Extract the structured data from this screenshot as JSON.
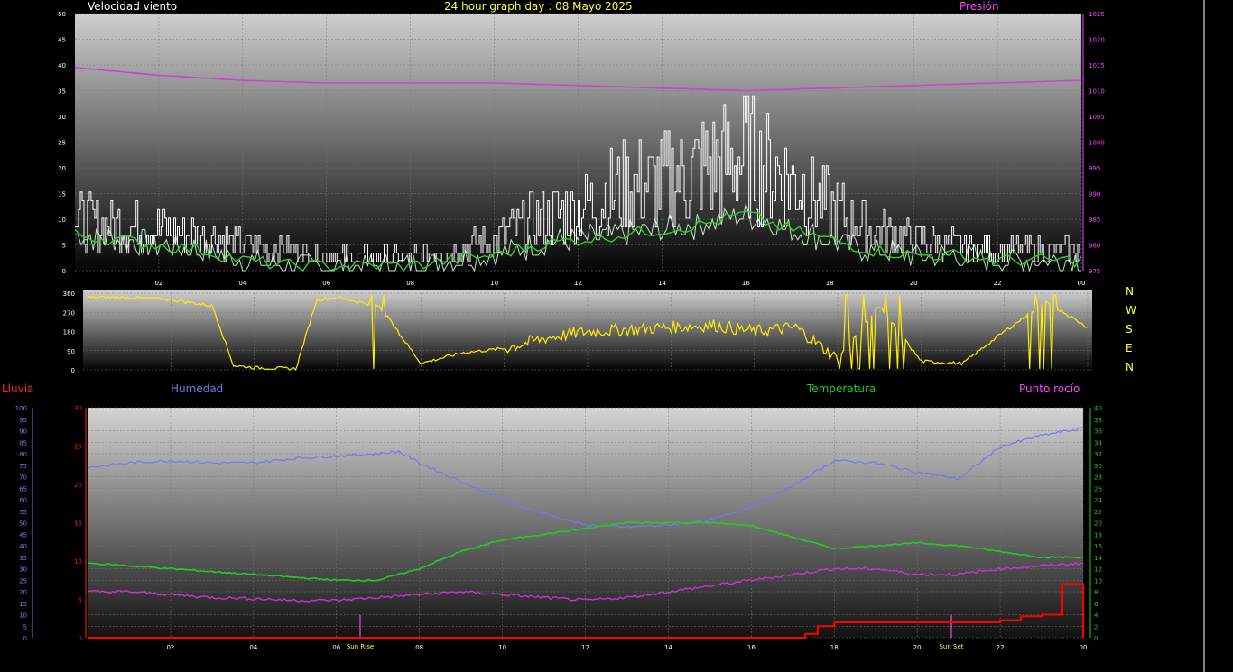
{
  "header": {
    "wind_label": "Velocidad viento",
    "title": "24 hour graph day : 08 Mayo 2025",
    "pressure_label": "Presión"
  },
  "direction_labels": [
    "N",
    "W",
    "S",
    "E",
    "N"
  ],
  "lower_labels": {
    "rain": "Lluvia",
    "humidity": "Humedad",
    "temperature": "Temperatura",
    "dewpoint": "Punto rocío"
  },
  "markers": {
    "sunrise": "Sun Rise",
    "sunset": "Sun Set"
  },
  "colors": {
    "wind": "#ffffff",
    "wind_avg": "#33cc33",
    "gust_fill": "#ccffcc",
    "pressure": "#cc44cc",
    "direction": "#ffee00",
    "humidity": "#7777ee",
    "temperature": "#22cc22",
    "dewpoint": "#cc33cc",
    "rain": "#ff0000",
    "label_white": "#ffffff",
    "label_yellow": "#ffff44",
    "label_magenta": "#ff44ff"
  },
  "chart_data": [
    {
      "type": "line",
      "x_ticks": [
        "02",
        "04",
        "06",
        "08",
        "10",
        "12",
        "14",
        "16",
        "18",
        "20",
        "22",
        "00"
      ],
      "y_left": {
        "min": 0,
        "max": 50,
        "ticks": [
          0,
          5,
          10,
          15,
          20,
          25,
          30,
          35,
          40,
          45,
          50
        ]
      },
      "y_right": {
        "min": 975,
        "max": 1025,
        "ticks": [
          975,
          980,
          985,
          990,
          995,
          1000,
          1005,
          1010,
          1015,
          1020,
          1025
        ]
      },
      "grid": true,
      "series": [
        {
          "key": "wind_gust",
          "x": [
            0,
            1,
            2,
            3,
            4,
            5,
            6,
            7,
            8,
            9,
            10,
            11,
            12,
            13,
            14,
            15,
            16,
            17,
            18,
            19,
            20,
            21,
            22,
            23,
            24
          ],
          "values": [
            10,
            9,
            8,
            7,
            5,
            4,
            3,
            3,
            3,
            4,
            6,
            10,
            12,
            16,
            17,
            20,
            22,
            18,
            12,
            8,
            6,
            5,
            4,
            4,
            4
          ]
        },
        {
          "key": "wind_avg",
          "x": [
            0,
            1,
            2,
            3,
            4,
            5,
            6,
            7,
            8,
            9,
            10,
            11,
            12,
            13,
            14,
            15,
            16,
            17,
            18,
            19,
            20,
            21,
            22,
            23,
            24
          ],
          "values": [
            7,
            6,
            5,
            4,
            2,
            1,
            1,
            1,
            1,
            2,
            3,
            5,
            6,
            7,
            8,
            9,
            11,
            8,
            6,
            4,
            3,
            3,
            2,
            2,
            2
          ]
        },
        {
          "key": "pressure",
          "x": [
            0,
            2,
            4,
            6,
            8,
            10,
            12,
            14,
            16,
            18,
            20,
            22,
            24
          ],
          "values": [
            1014.5,
            1013,
            1012,
            1011.5,
            1011.5,
            1011.5,
            1011,
            1010.5,
            1010,
            1010.5,
            1011,
            1011.5,
            1012
          ]
        }
      ]
    },
    {
      "type": "line",
      "x_ticks": [],
      "y": {
        "min": 0,
        "max": 360,
        "ticks": [
          0,
          90,
          180,
          270,
          360
        ]
      },
      "grid": true,
      "series": [
        {
          "key": "wind_direction",
          "x": [
            0,
            1,
            2,
            3,
            3.5,
            4,
            5,
            5.5,
            6,
            7,
            8,
            9,
            10,
            11,
            12,
            13,
            14,
            15,
            16,
            17,
            18,
            19,
            20,
            21,
            22,
            23,
            24
          ],
          "values": [
            340,
            340,
            330,
            300,
            20,
            10,
            5,
            330,
            340,
            300,
            30,
            80,
            100,
            150,
            180,
            190,
            200,
            210,
            180,
            200,
            50,
            300,
            40,
            30,
            180,
            320,
            200
          ]
        }
      ]
    },
    {
      "type": "line",
      "x_ticks": [
        "02",
        "04",
        "06",
        "08",
        "10",
        "12",
        "14",
        "16",
        "18",
        "20",
        "22",
        "00"
      ],
      "y_left_rain": {
        "min": 0,
        "max": 30,
        "ticks": [
          0,
          5,
          10,
          15,
          20,
          25,
          30
        ]
      },
      "y_left_humidity": {
        "min": 0,
        "max": 100,
        "ticks": [
          0,
          5,
          10,
          15,
          20,
          25,
          30,
          35,
          40,
          45,
          50,
          55,
          60,
          65,
          70,
          75,
          80,
          85,
          90,
          95,
          100
        ]
      },
      "y_right": {
        "min": 0,
        "max": 40,
        "ticks": [
          0,
          2,
          4,
          6,
          8,
          10,
          12,
          14,
          16,
          18,
          20,
          22,
          24,
          26,
          28,
          30,
          32,
          34,
          36,
          38,
          40
        ]
      },
      "grid": true,
      "series": [
        {
          "key": "humidity",
          "x": [
            0,
            1,
            2,
            3,
            4,
            5,
            6,
            7,
            7.5,
            8,
            9,
            10,
            11,
            12,
            13,
            14,
            15,
            16,
            17,
            18,
            19,
            20,
            21,
            22,
            23,
            24
          ],
          "values": [
            74,
            76,
            77,
            76,
            76,
            78,
            79,
            80,
            81,
            76,
            68,
            60,
            54,
            49,
            48,
            49,
            51,
            57,
            66,
            77,
            76,
            72,
            69,
            83,
            88,
            91
          ]
        },
        {
          "key": "temperature",
          "x": [
            0,
            1,
            2,
            3,
            4,
            5,
            6,
            7,
            8,
            9,
            10,
            11,
            12,
            13,
            14,
            15,
            16,
            17,
            18,
            19,
            20,
            21,
            22,
            23,
            24
          ],
          "values": [
            13,
            12.5,
            12,
            11.5,
            11,
            10.5,
            10,
            10,
            12,
            15,
            17,
            18,
            19,
            20,
            20,
            20,
            19.5,
            17.5,
            15.5,
            16,
            16.5,
            16,
            15,
            14,
            14
          ]
        },
        {
          "key": "dewpoint",
          "x": [
            0,
            1,
            2,
            3,
            4,
            5,
            6,
            7,
            8,
            9,
            10,
            11,
            12,
            13,
            14,
            15,
            16,
            17,
            18,
            19,
            20,
            21,
            22,
            23,
            24
          ],
          "values": [
            8,
            8,
            7.5,
            7,
            6.8,
            6.5,
            6.5,
            7,
            7.5,
            8,
            7.5,
            7,
            6.5,
            7,
            8,
            9,
            10,
            11,
            12,
            12,
            11,
            11,
            12,
            12.5,
            13
          ]
        },
        {
          "key": "rain",
          "x": [
            0,
            17,
            17.3,
            17.6,
            18,
            19,
            20,
            21,
            21.5,
            22,
            22.5,
            23,
            23.5,
            24,
            24.1
          ],
          "values": [
            0,
            0,
            0.5,
            1.5,
            2,
            2,
            2,
            2,
            2,
            2.3,
            2.8,
            3,
            7,
            7,
            0
          ]
        }
      ]
    }
  ]
}
